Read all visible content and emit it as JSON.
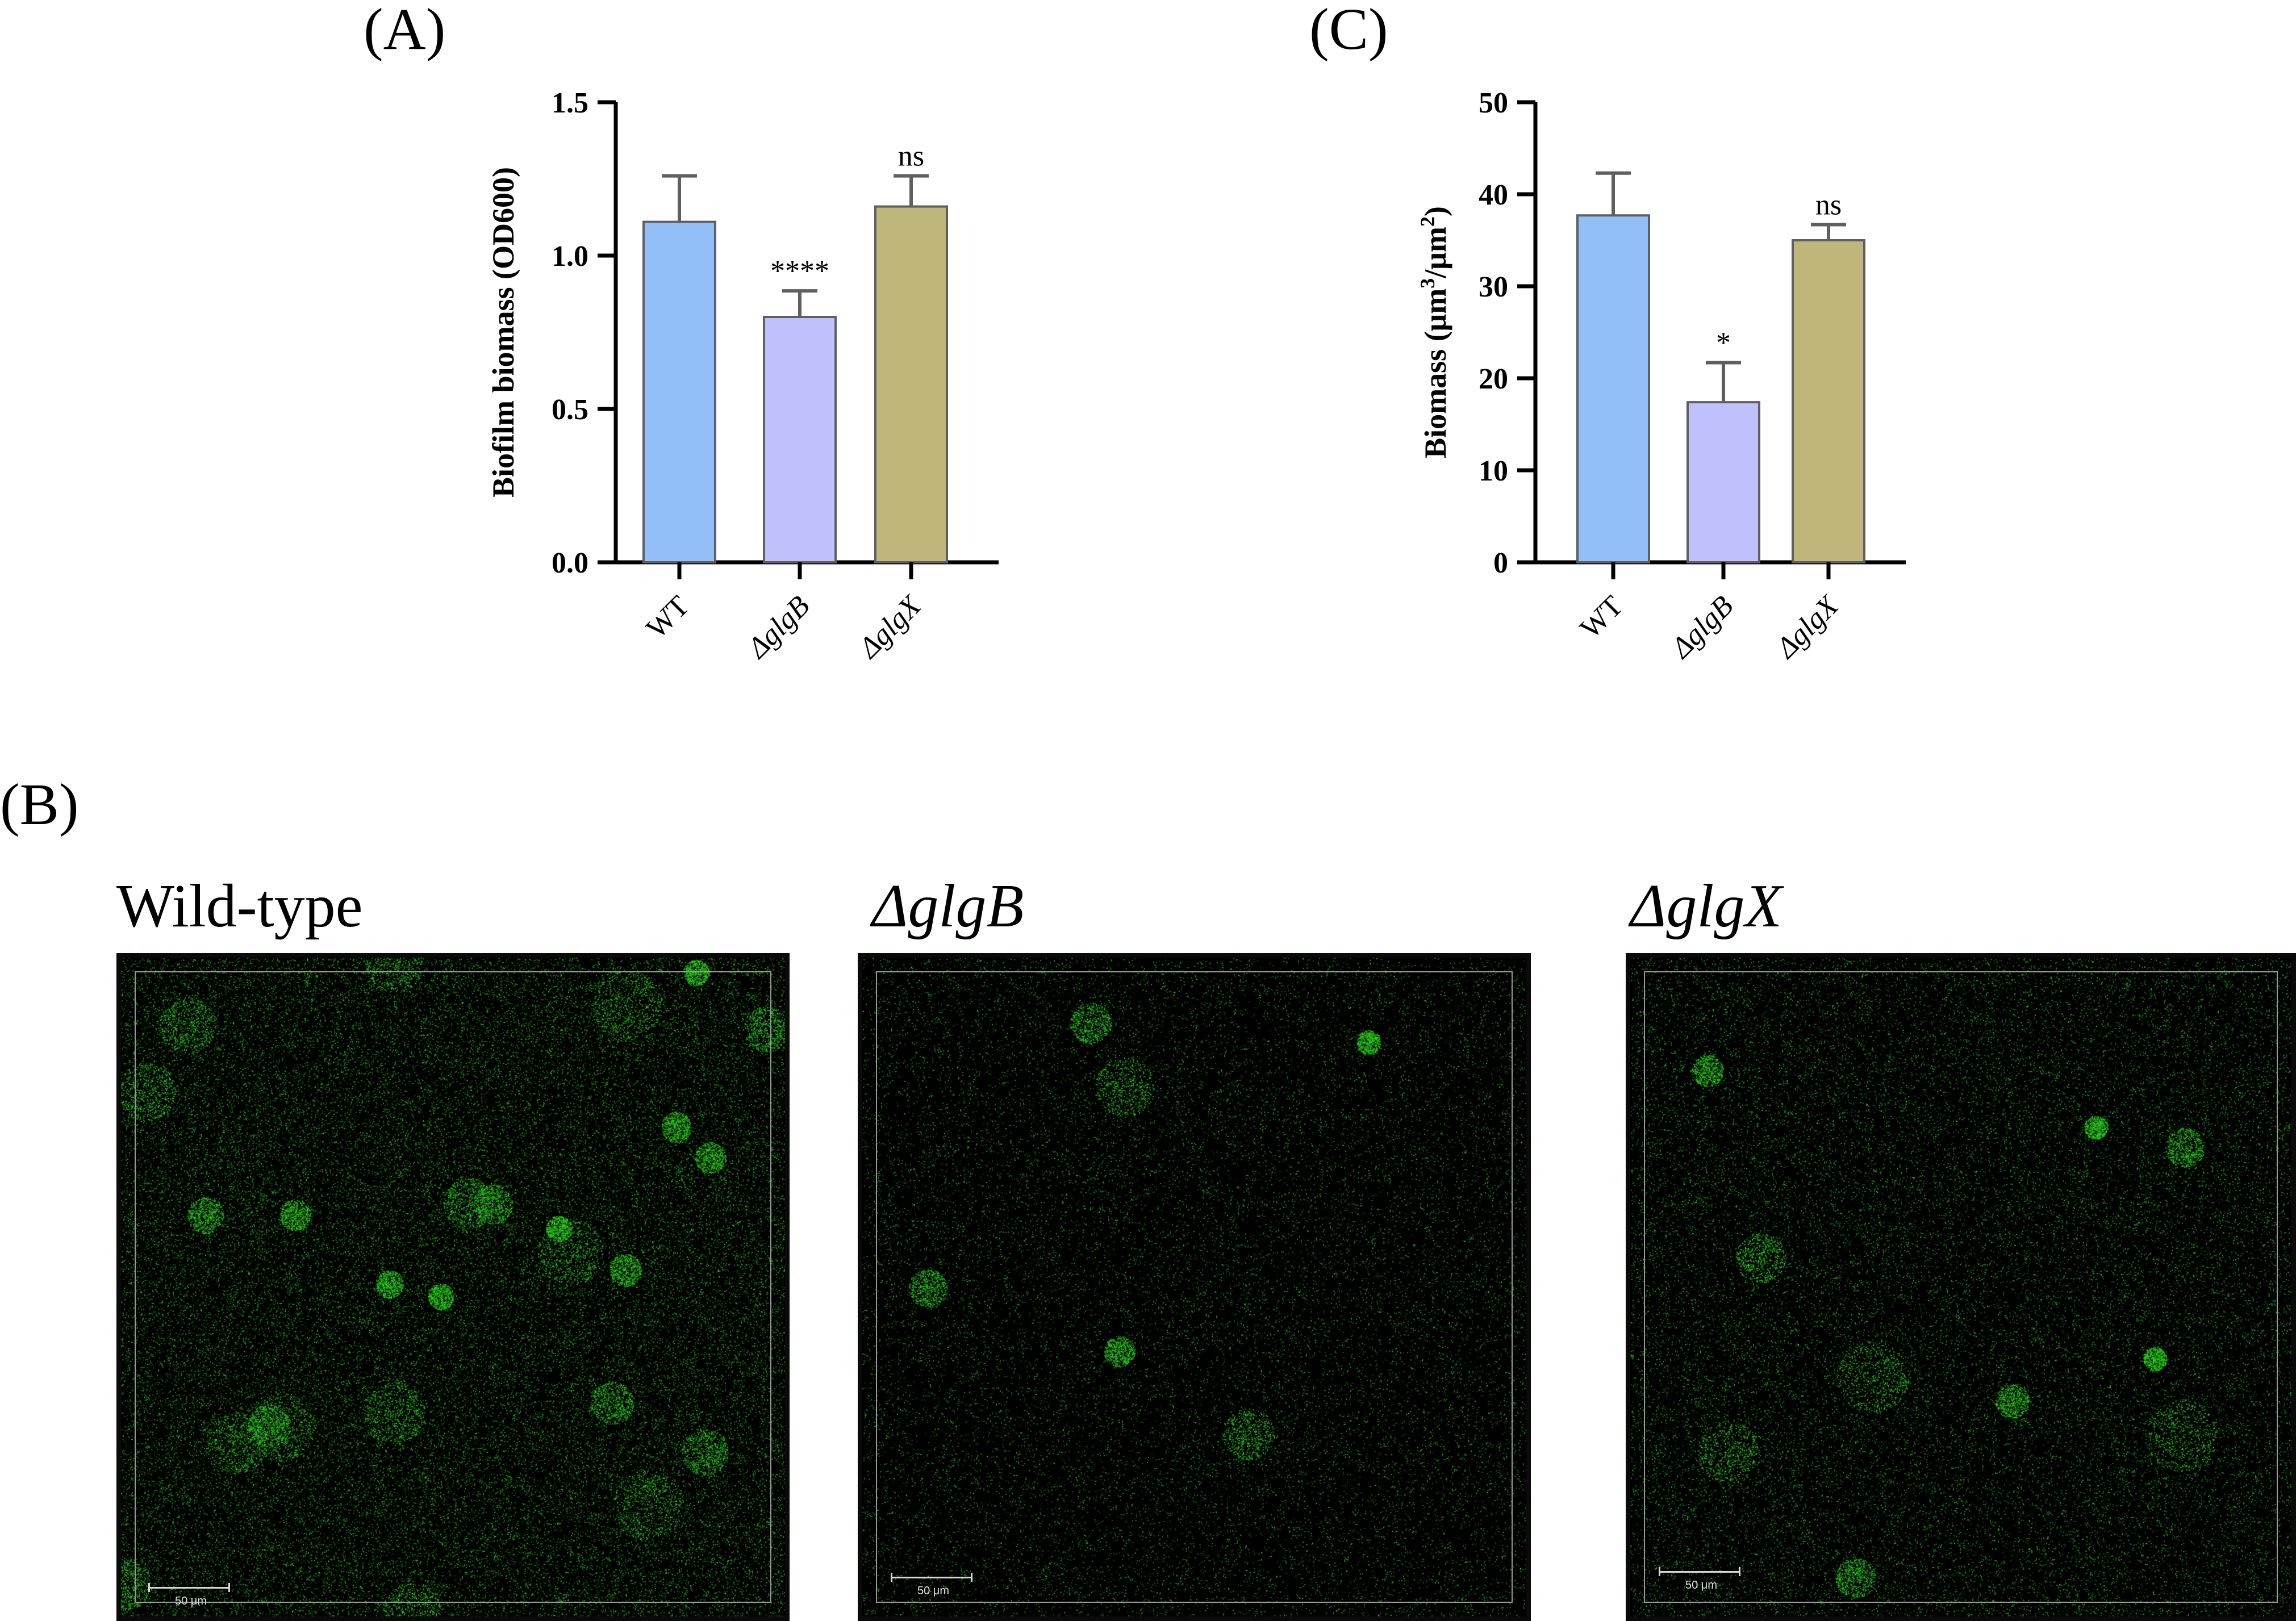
{
  "panels": {
    "a_label": "(A)",
    "b_label": "(B)",
    "c_label": "(C)"
  },
  "chart_data": [
    {
      "type": "bar",
      "panel": "A",
      "ylabel": "Biofilm biomass (OD600)",
      "ylim": [
        0,
        1.5
      ],
      "yticks": [
        "0.0",
        "0.5",
        "1.0",
        "1.5"
      ],
      "categories": [
        "WT",
        "ΔglgB",
        "ΔglgX"
      ],
      "values": [
        1.11,
        0.8,
        1.16
      ],
      "errors": [
        0.15,
        0.085,
        0.1
      ],
      "significance": [
        "",
        "****",
        "ns"
      ],
      "colors": [
        "#93bff9",
        "#c0c1fc",
        "#bfb67b"
      ]
    },
    {
      "type": "bar",
      "panel": "C",
      "ylabel_main": "Biomass (μm",
      "ylabel_sup1": "3",
      "ylabel_mid": "/μm",
      "ylabel_sup2": "2",
      "ylabel_end": ")",
      "ylim": [
        0,
        50
      ],
      "yticks": [
        "0",
        "10",
        "20",
        "30",
        "40",
        "50"
      ],
      "categories": [
        "WT",
        "ΔglgB",
        "ΔglgX"
      ],
      "values": [
        37.7,
        17.4,
        35.0
      ],
      "errors": [
        4.6,
        4.3,
        1.7
      ],
      "significance": [
        "",
        "*",
        "ns"
      ],
      "colors": [
        "#93bff9",
        "#c0c1fc",
        "#bfb67b"
      ]
    }
  ],
  "micrographs": [
    {
      "title": "Wild-type",
      "scale": "50 μm",
      "density": 0.3,
      "clusters": 26
    },
    {
      "title": "ΔglgB",
      "scale": "50 μm",
      "density": 0.14,
      "clusters": 6
    },
    {
      "title": "ΔglgX",
      "scale": "50 μm",
      "density": 0.2,
      "clusters": 10
    }
  ],
  "colors": {
    "fluorescence": "#2fbf1f",
    "bar_outline": "#5f5f5f",
    "error_bar": "#5f5f5f"
  }
}
